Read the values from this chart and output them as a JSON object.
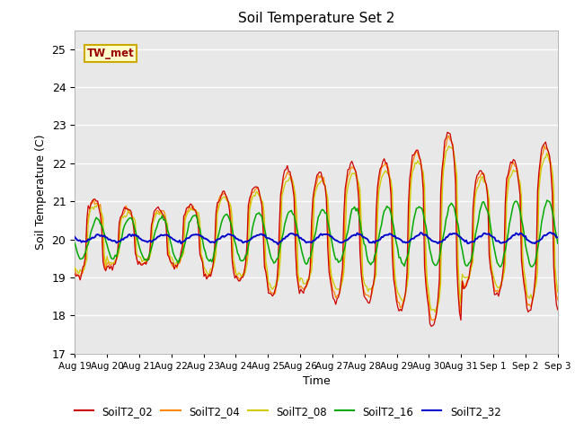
{
  "title": "Soil Temperature Set 2",
  "xlabel": "Time",
  "ylabel": "Soil Temperature (C)",
  "ylim": [
    17.0,
    25.5
  ],
  "yticks": [
    17.0,
    18.0,
    19.0,
    20.0,
    21.0,
    22.0,
    23.0,
    24.0,
    25.0
  ],
  "series_names": [
    "SoilT2_02",
    "SoilT2_04",
    "SoilT2_08",
    "SoilT2_16",
    "SoilT2_32"
  ],
  "series_colors": [
    "#cc0000",
    "#ff8800",
    "#cccc00",
    "#00aa00",
    "#0000cc"
  ],
  "annotation_text": "TW_met",
  "annotation_bg": "#ffffcc",
  "annotation_border": "#ccaa00",
  "background_color": "#e8e8e8",
  "n_days": 15,
  "base_temp": 20.0,
  "xtick_labels": [
    "Aug 19",
    "Aug 20",
    "Aug 21",
    "Aug 22",
    "Aug 23",
    "Aug 24",
    "Aug 25",
    "Aug 26",
    "Aug 27",
    "Aug 28",
    "Aug 29",
    "Aug 30",
    "Aug 31",
    "Sep 1",
    "Sep 2",
    "Sep 3"
  ]
}
